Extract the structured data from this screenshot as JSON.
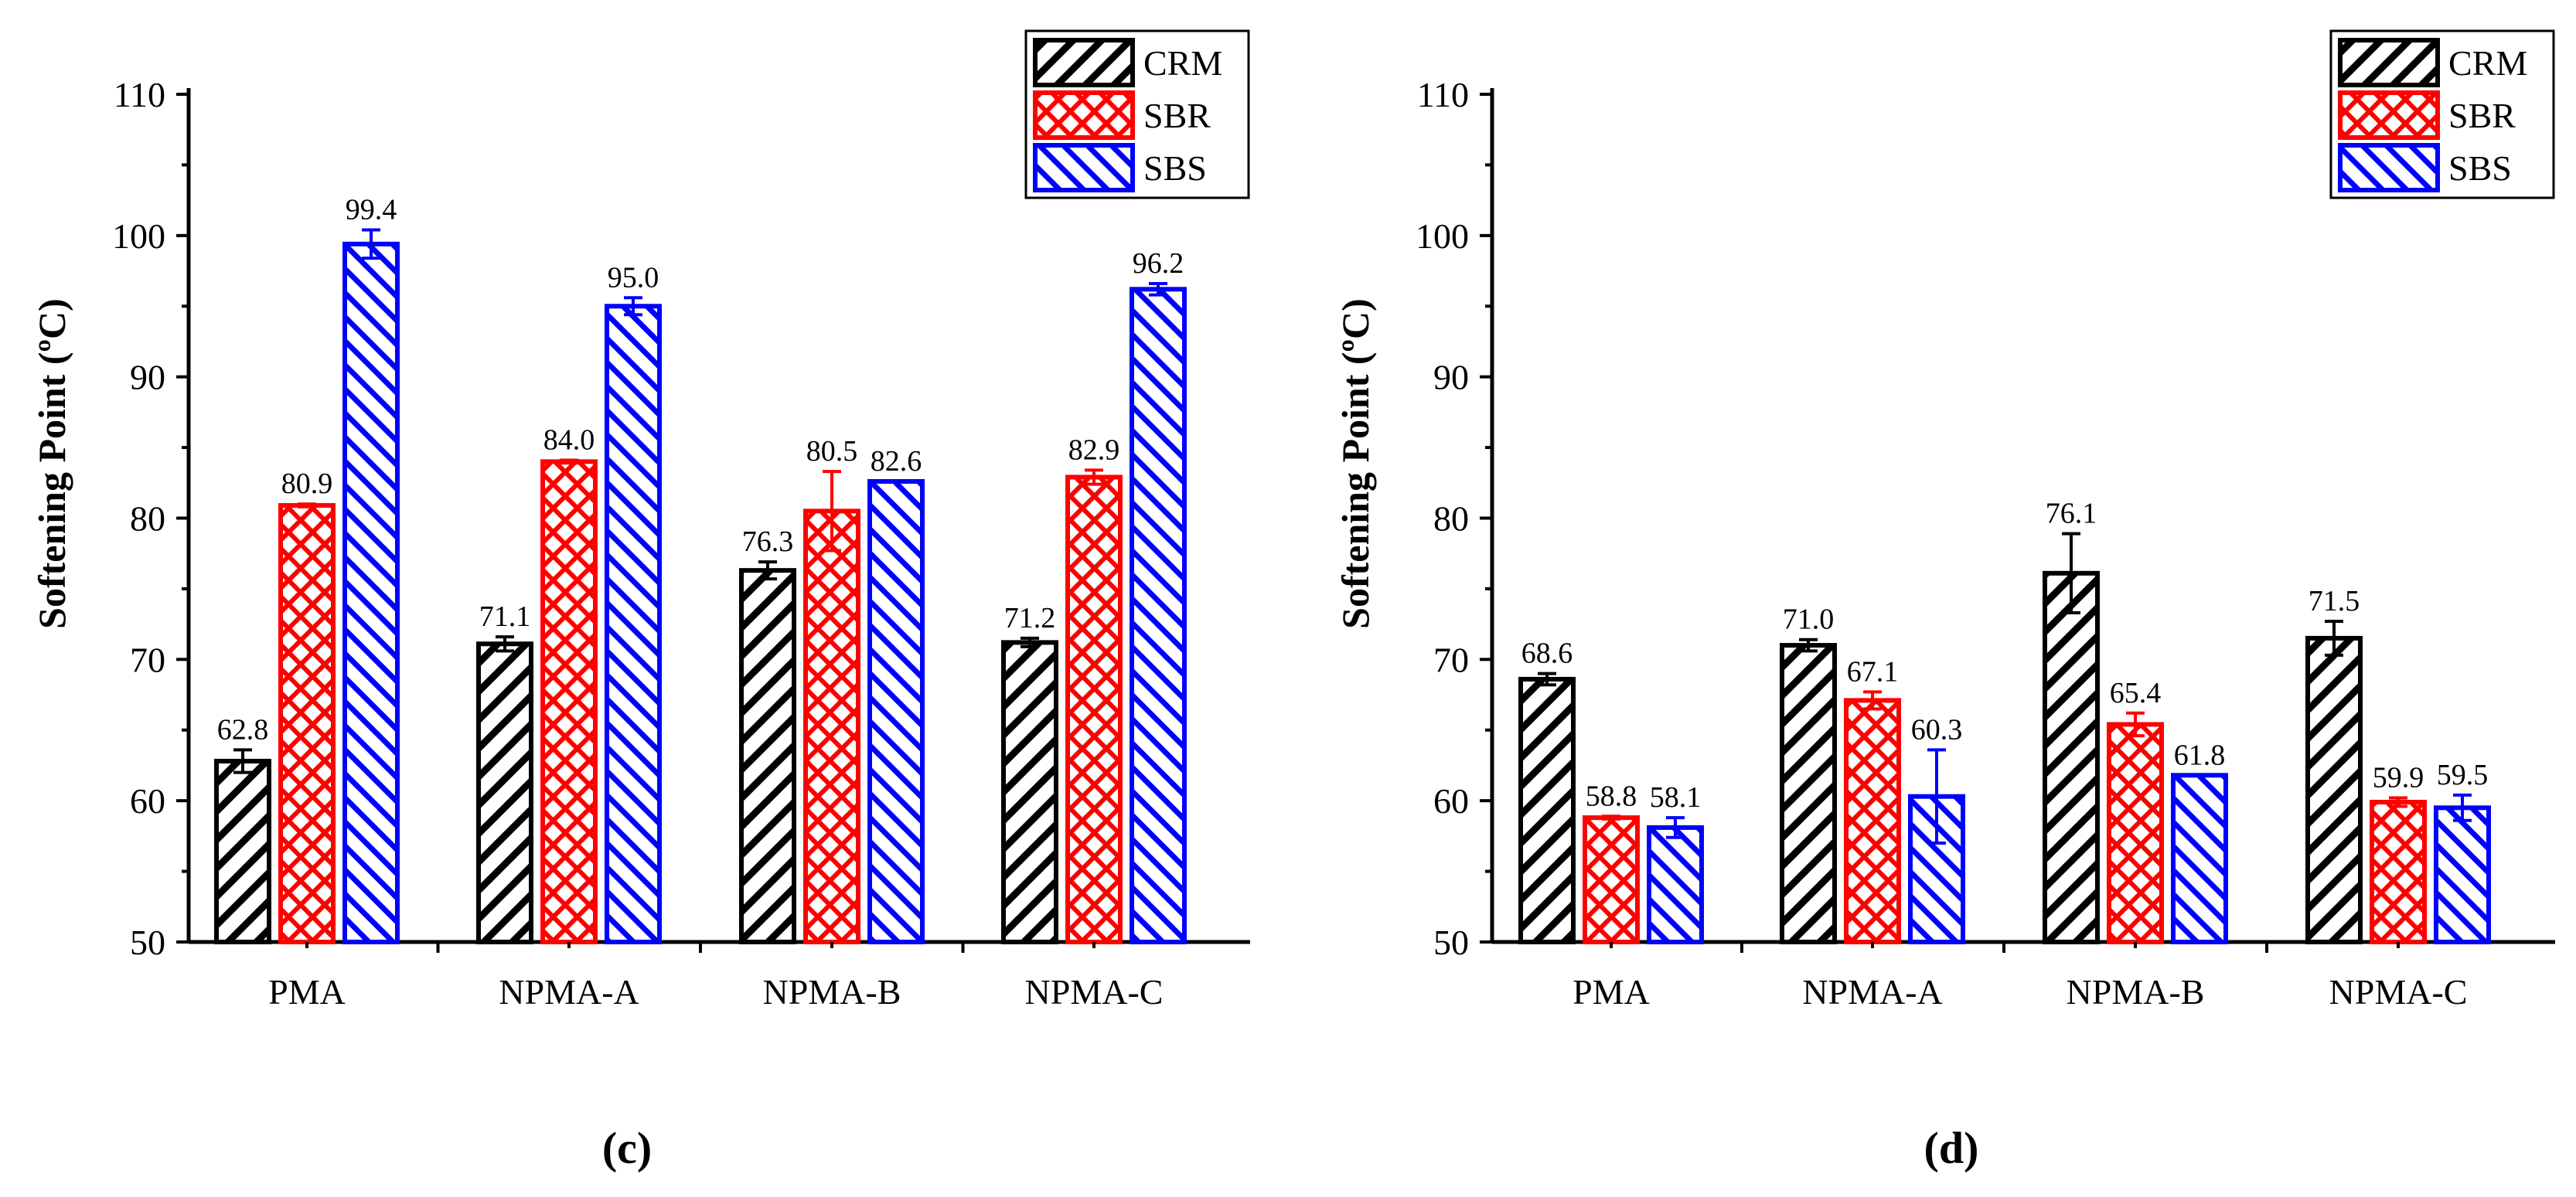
{
  "panels": [
    {
      "label": "(c)",
      "ylabel": "Softening Point (ºC)",
      "ylim": [
        50,
        110
      ],
      "yticks": [
        "50",
        "60",
        "70",
        "80",
        "90",
        "100",
        "110"
      ],
      "categories": [
        "PMA",
        "NPMA-A",
        "NPMA-B",
        "NPMA-C"
      ],
      "legend": {
        "items": [
          "CRM",
          "SBR",
          "SBS"
        ],
        "position": "top-right"
      }
    },
    {
      "label": "(d)",
      "ylabel": "Softening Point (ºC)",
      "ylim": [
        50,
        110
      ],
      "yticks": [
        "50",
        "60",
        "70",
        "80",
        "90",
        "100",
        "110"
      ],
      "categories": [
        "PMA",
        "NPMA-A",
        "NPMA-B",
        "NPMA-C"
      ],
      "legend": {
        "items": [
          "CRM",
          "SBR",
          "SBS"
        ],
        "position": "top-right"
      }
    }
  ],
  "chart_data": [
    {
      "type": "bar",
      "panel": "(c)",
      "ylabel": "Softening Point (ºC)",
      "ylim": [
        50,
        110
      ],
      "categories": [
        "PMA",
        "NPMA-A",
        "NPMA-B",
        "NPMA-C"
      ],
      "series": [
        {
          "name": "CRM",
          "color": "#000000",
          "pattern": "hatch-diagonal",
          "values": [
            62.8,
            71.1,
            76.3,
            71.2
          ],
          "labels": [
            "62.8",
            "71.1",
            "76.3",
            "71.2"
          ],
          "errors": [
            0.8,
            0.5,
            0.6,
            0.3
          ]
        },
        {
          "name": "SBR",
          "color": "#ff0000",
          "pattern": "crosshatch",
          "values": [
            80.9,
            84.0,
            80.5,
            82.9
          ],
          "labels": [
            "80.9",
            "84.0",
            "80.5",
            "82.9"
          ],
          "errors": [
            0.1,
            0.1,
            2.8,
            0.5
          ]
        },
        {
          "name": "SBS",
          "color": "#0000ff",
          "pattern": "hatch-backdiagonal",
          "values": [
            99.4,
            95.0,
            82.6,
            96.2
          ],
          "labels": [
            "99.4",
            "95.0",
            "82.6",
            "96.2"
          ],
          "errors": [
            1.0,
            0.6,
            0.0,
            0.4
          ]
        }
      ]
    },
    {
      "type": "bar",
      "panel": "(d)",
      "ylabel": "Softening Point (ºC)",
      "ylim": [
        50,
        110
      ],
      "categories": [
        "PMA",
        "NPMA-A",
        "NPMA-B",
        "NPMA-C"
      ],
      "series": [
        {
          "name": "CRM",
          "color": "#000000",
          "pattern": "hatch-diagonal",
          "values": [
            68.6,
            71.0,
            76.1,
            71.5
          ],
          "labels": [
            "68.6",
            "71.0",
            "76.1",
            "71.5"
          ],
          "errors": [
            0.4,
            0.4,
            2.8,
            1.2
          ]
        },
        {
          "name": "SBR",
          "color": "#ff0000",
          "pattern": "crosshatch",
          "values": [
            58.8,
            67.1,
            65.4,
            59.9
          ],
          "labels": [
            "58.8",
            "67.1",
            "65.4",
            "59.9"
          ],
          "errors": [
            0.1,
            0.6,
            0.8,
            0.3
          ]
        },
        {
          "name": "SBS",
          "color": "#0000ff",
          "pattern": "hatch-backdiagonal",
          "values": [
            58.1,
            60.3,
            61.8,
            59.5
          ],
          "labels": [
            "58.1",
            "60.3",
            "61.8",
            "59.5"
          ],
          "errors": [
            0.7,
            3.3,
            0.0,
            0.9
          ]
        }
      ]
    }
  ]
}
